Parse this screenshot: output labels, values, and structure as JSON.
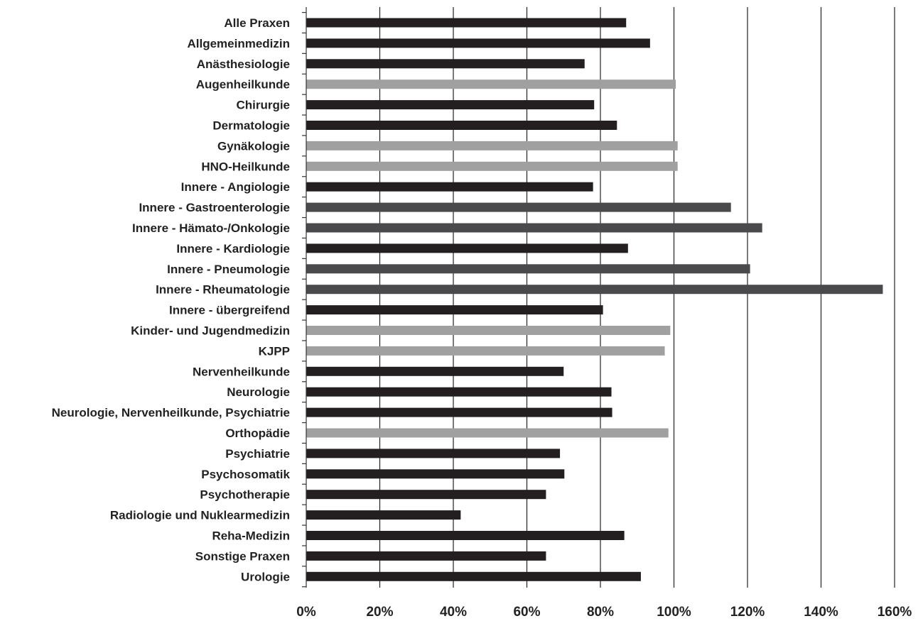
{
  "chart_data": {
    "type": "bar",
    "orientation": "horizontal",
    "title": "",
    "xlabel": "",
    "ylabel": "",
    "xlim": [
      0,
      1.6
    ],
    "x_tick_values": [
      0,
      0.2,
      0.4,
      0.6,
      0.8,
      1.0,
      1.2,
      1.4,
      1.6
    ],
    "x_tick_labels": [
      "0%",
      "20%",
      "40%",
      "60%",
      "80%",
      "100%",
      "120%",
      "140%",
      "160%"
    ],
    "grid": "vertical",
    "legend": "none",
    "colors": {
      "dark": "#231f20",
      "medium": "#4a4a4c",
      "light": "#a0a0a0"
    },
    "categories": [
      "Alle Praxen",
      "Allgemeinmedizin",
      "Anästhesiologie",
      "Augenheilkunde",
      "Chirurgie",
      "Dermatologie",
      "Gynäkologie",
      "HNO-Heilkunde",
      "Innere - Angiologie",
      "Innere - Gastroenterologie",
      "Innere - Hämato-/Onkologie",
      "Innere - Kardiologie",
      "Innere - Pneumologie",
      "Innere - Rheumatologie",
      "Innere - übergreifend",
      "Kinder- und Jugendmedizin",
      "KJPP",
      "Nervenheilkunde",
      "Neurologie",
      "Neurologie, Nervenheilkunde, Psychiatrie",
      "Orthopädie",
      "Psychiatrie",
      "Psychosomatik",
      "Psychotherapie",
      "Radiologie und Nuklearmedizin",
      "Reha-Medizin",
      "Sonstige Praxen",
      "Urologie"
    ],
    "values": [
      0.87,
      0.935,
      0.757,
      1.005,
      0.783,
      0.845,
      1.01,
      1.01,
      0.78,
      1.155,
      1.24,
      0.875,
      1.207,
      1.568,
      0.807,
      0.99,
      0.975,
      0.7,
      0.83,
      0.832,
      0.985,
      0.69,
      0.702,
      0.652,
      0.42,
      0.865,
      0.652,
      0.91
    ],
    "bar_colors": [
      "dark",
      "dark",
      "dark",
      "light",
      "dark",
      "dark",
      "light",
      "light",
      "dark",
      "medium",
      "medium",
      "dark",
      "medium",
      "medium",
      "dark",
      "light",
      "light",
      "dark",
      "dark",
      "dark",
      "light",
      "dark",
      "dark",
      "dark",
      "dark",
      "dark",
      "dark",
      "dark"
    ]
  }
}
